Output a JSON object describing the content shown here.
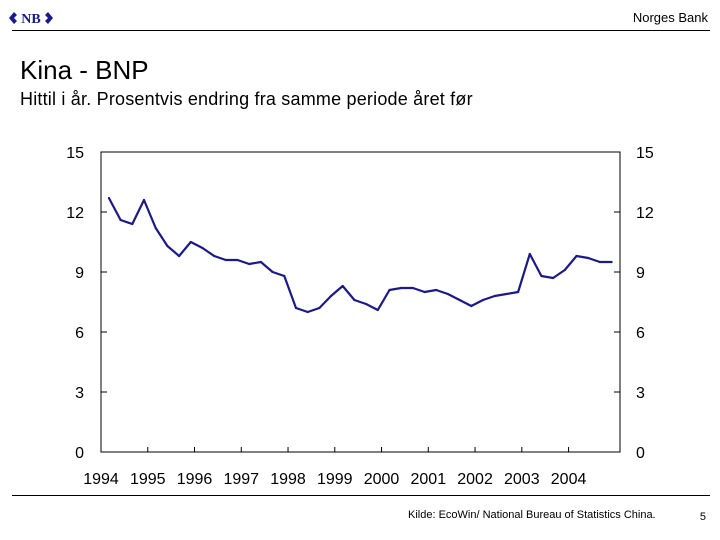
{
  "header": {
    "logo_name": "norges-bank-logo",
    "logo_text": "NB",
    "brand": "Norges Bank"
  },
  "slide": {
    "title": "Kina - BNP",
    "subtitle": "Hittil i år. Prosentvis endring fra samme periode året før",
    "source": "Kilde: EcoWin/ National Bureau of Statistics China.",
    "page_number": "5"
  },
  "colors": {
    "line": "#1a1a8c",
    "axis": "#000000",
    "background": "#ffffff"
  },
  "chart_data": {
    "type": "line",
    "title": "Kina - BNP",
    "subtitle": "Hittil i år. Prosentvis endring fra samme periode året før",
    "xlabel": "",
    "ylabel": "",
    "xlim": [
      1994,
      2005.1
    ],
    "ylim": [
      0,
      15
    ],
    "yticks": [
      0,
      3,
      6,
      9,
      12,
      15
    ],
    "xticks": [
      "1994",
      "1995",
      "1996",
      "1997",
      "1998",
      "1999",
      "2000",
      "2001",
      "2002",
      "2003",
      "2004"
    ],
    "y_axis_both_sides": true,
    "grid": false,
    "legend": "none",
    "series": [
      {
        "x": [
          1994.17,
          1994.42,
          1994.67,
          1994.92,
          1995.17,
          1995.42,
          1995.67,
          1995.92,
          1996.17,
          1996.42,
          1996.67,
          1996.92,
          1997.17,
          1997.42,
          1997.67,
          1997.92,
          1998.17,
          1998.42,
          1998.67,
          1998.92,
          1999.17,
          1999.42,
          1999.67,
          1999.92,
          2000.17,
          2000.42,
          2000.67,
          2000.92,
          2001.17,
          2001.42,
          2001.67,
          2001.92,
          2002.17,
          2002.42,
          2002.67,
          2002.92,
          2003.17,
          2003.42,
          2003.67,
          2003.92,
          2004.17,
          2004.42,
          2004.67,
          2004.92
        ],
        "values": [
          12.7,
          11.6,
          11.4,
          12.6,
          11.2,
          10.3,
          9.8,
          10.5,
          10.2,
          9.8,
          9.6,
          9.6,
          9.4,
          9.5,
          9.0,
          8.8,
          7.2,
          7.0,
          7.2,
          7.8,
          8.3,
          7.6,
          7.4,
          7.1,
          8.1,
          8.2,
          8.2,
          8.0,
          8.1,
          7.9,
          7.6,
          7.3,
          7.6,
          7.8,
          7.9,
          8.0,
          9.9,
          8.8,
          8.7,
          9.1,
          9.8,
          9.7,
          9.5,
          9.5
        ]
      }
    ]
  }
}
